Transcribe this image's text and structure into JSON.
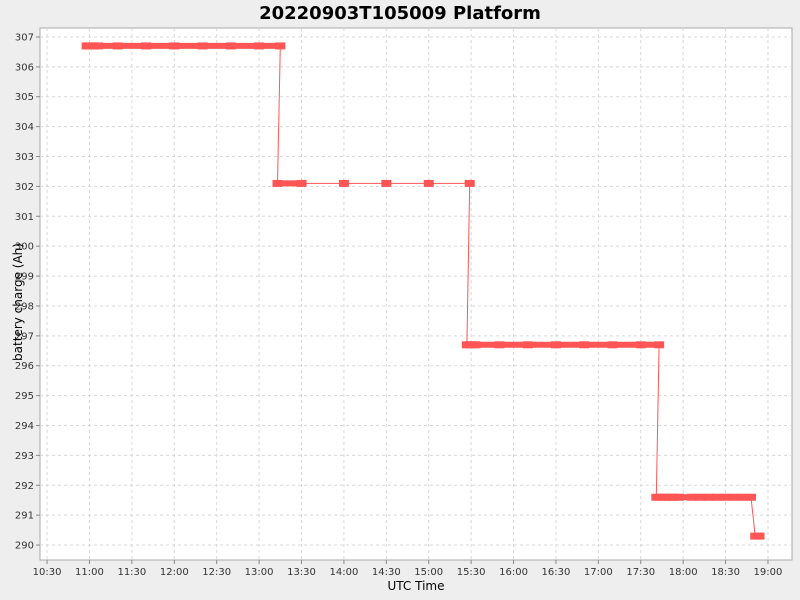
{
  "chart_data": {
    "type": "scatter",
    "title": "20220903T105009 Platform",
    "xlabel": "UTC Time",
    "ylabel": "battery charge (Ah)",
    "x_ticks": [
      "10:30",
      "11:00",
      "11:30",
      "12:00",
      "12:30",
      "13:00",
      "13:30",
      "14:00",
      "14:30",
      "15:00",
      "15:30",
      "16:00",
      "16:30",
      "17:00",
      "17:30",
      "18:00",
      "18:30",
      "19:00"
    ],
    "y_ticks": [
      290,
      291,
      292,
      293,
      294,
      295,
      296,
      297,
      298,
      299,
      300,
      301,
      302,
      303,
      304,
      305,
      306,
      307
    ],
    "xlim": [
      "10:25",
      "19:17"
    ],
    "ylim": [
      289.5,
      307.3
    ],
    "grid": true,
    "colors": {
      "series": "#ff5555",
      "plot_bg": "#ffffff",
      "page_bg": "#eeeeee"
    },
    "series": [
      {
        "points": [
          [
            "10:58",
            306.7
          ],
          [
            "11:00",
            306.7
          ],
          [
            "11:03",
            306.7
          ],
          [
            "11:06",
            306.7
          ],
          [
            "11:20",
            306.7
          ],
          [
            "11:40",
            306.7
          ],
          [
            "12:00",
            306.7
          ],
          [
            "12:20",
            306.7
          ],
          [
            "12:40",
            306.7
          ],
          [
            "13:00",
            306.7
          ],
          [
            "13:15",
            306.7
          ],
          [
            "13:13",
            302.1
          ],
          [
            "13:30",
            302.1
          ],
          [
            "14:00",
            302.1
          ],
          [
            "14:30",
            302.1
          ],
          [
            "15:00",
            302.1
          ],
          [
            "15:29",
            302.1
          ],
          [
            "15:27",
            296.7
          ],
          [
            "15:30",
            296.7
          ],
          [
            "15:33",
            296.7
          ],
          [
            "15:50",
            296.7
          ],
          [
            "16:10",
            296.7
          ],
          [
            "16:30",
            296.7
          ],
          [
            "16:50",
            296.7
          ],
          [
            "17:10",
            296.7
          ],
          [
            "17:30",
            296.7
          ],
          [
            "17:43",
            296.7
          ],
          [
            "17:41",
            291.6
          ],
          [
            "17:44",
            291.6
          ],
          [
            "17:47",
            291.6
          ],
          [
            "17:50",
            291.6
          ],
          [
            "17:53",
            291.6
          ],
          [
            "17:57",
            291.6
          ],
          [
            "18:06",
            291.6
          ],
          [
            "18:12",
            291.6
          ],
          [
            "18:18",
            291.6
          ],
          [
            "18:24",
            291.6
          ],
          [
            "18:30",
            291.6
          ],
          [
            "18:36",
            291.6
          ],
          [
            "18:42",
            291.6
          ],
          [
            "18:48",
            291.6
          ],
          [
            "18:51",
            290.3
          ],
          [
            "18:54",
            290.3
          ]
        ],
        "steps": [
          [
            [
              "10:58",
              306.7
            ],
            [
              "11:06",
              306.7
            ],
            [
              "11:12",
              306.7
            ],
            [
              "13:15",
              306.7
            ],
            [
              "13:13",
              302.1
            ],
            [
              "15:29",
              302.1
            ],
            [
              "15:27",
              296.7
            ],
            [
              "17:43",
              296.7
            ],
            [
              "17:41",
              291.6
            ],
            [
              "18:48",
              291.6
            ],
            [
              "18:51",
              290.3
            ],
            [
              "18:54",
              290.3
            ]
          ]
        ]
      }
    ]
  }
}
